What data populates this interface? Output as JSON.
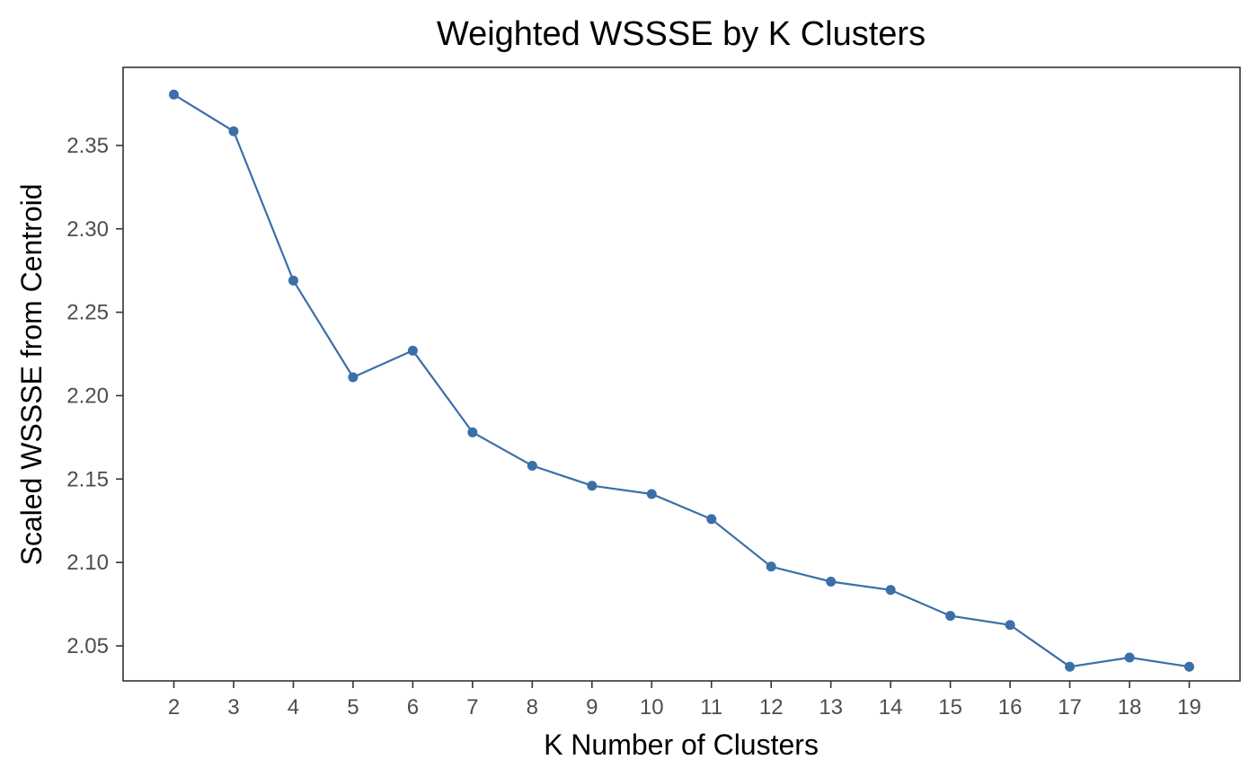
{
  "chart_data": {
    "type": "line",
    "title": "Weighted WSSSE by K Clusters",
    "xlabel": "K Number of Clusters",
    "ylabel": "Scaled WSSSE from Centroid",
    "x": [
      2,
      3,
      4,
      5,
      6,
      7,
      8,
      9,
      10,
      11,
      12,
      13,
      14,
      15,
      16,
      17,
      18,
      19
    ],
    "y": [
      2.3805,
      2.3585,
      2.269,
      2.211,
      2.227,
      2.178,
      2.158,
      2.146,
      2.141,
      2.126,
      2.0975,
      2.0885,
      2.0835,
      2.068,
      2.0625,
      2.0375,
      2.043,
      2.0375
    ],
    "x_ticks": [
      "2",
      "3",
      "4",
      "5",
      "6",
      "7",
      "8",
      "9",
      "10",
      "11",
      "12",
      "13",
      "14",
      "15",
      "16",
      "17",
      "18",
      "19"
    ],
    "y_ticks": [
      "2.05",
      "2.10",
      "2.15",
      "2.20",
      "2.25",
      "2.30",
      "2.35"
    ],
    "y_tick_values": [
      2.05,
      2.1,
      2.15,
      2.2,
      2.25,
      2.3,
      2.35
    ],
    "xlim": [
      1.15,
      19.85
    ],
    "ylim": [
      2.029,
      2.3968
    ],
    "grid": false,
    "legend": "none",
    "series_color": "#3a6fa8"
  }
}
